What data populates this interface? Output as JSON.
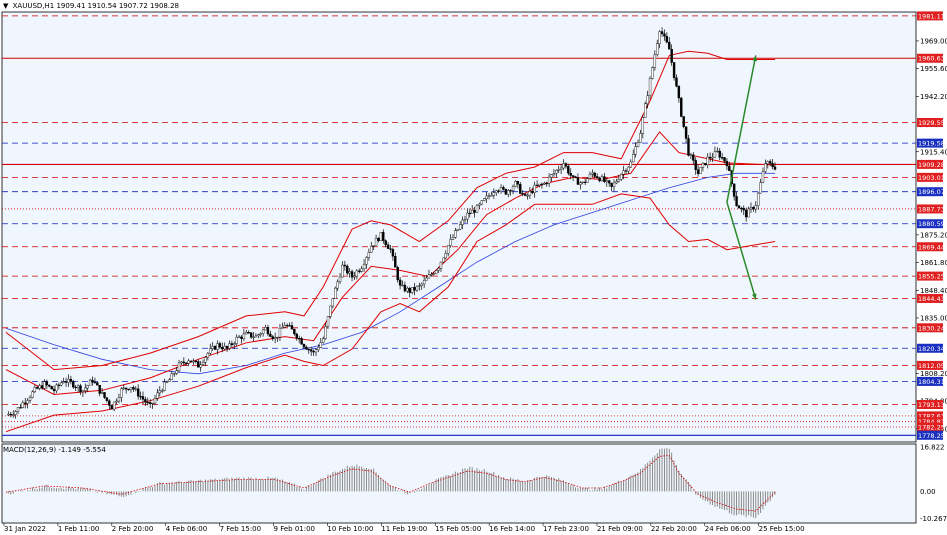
{
  "header": {
    "symbol": "XAUUSD,H1",
    "open": "1909.41",
    "high": "1910.54",
    "low": "1907.72",
    "close": "1908.28"
  },
  "macd": {
    "label": "MACD(12,26,9)",
    "main": "-1.149",
    "signal": "-5.554",
    "y_ticks": [
      "16.822",
      "0.00",
      "-10.267"
    ]
  },
  "colors": {
    "background": "#f0f6fd",
    "grid_border": "#000000",
    "candle": "#000000",
    "bollinger": "#e00000",
    "ma_long": "#3040e0",
    "support_line": "#d00000",
    "blue_level": "#1020c0",
    "arrow_green": "#2a8a2a",
    "red_label_bg": "#e02020",
    "blue_label_bg": "#1a30c0",
    "macd_hist": "#808080",
    "macd_signal": "#d00000"
  },
  "chart_data": {
    "type": "candlestick",
    "symbol": "XAUUSD",
    "timeframe": "H1",
    "ylim": [
      1775,
      1983
    ],
    "price_ticks": [
      "1969.00",
      "1955.60",
      "1942.20",
      "1915.40",
      "1875.20",
      "1861.80",
      "1848.40",
      "1835.00",
      "1808.20",
      "1794.80",
      "1781.40"
    ],
    "x_ticks": [
      "31 Jan 2022",
      "1 Feb 11:00",
      "2 Feb 20:00",
      "4 Feb 06:00",
      "7 Feb 15:00",
      "9 Feb 01:00",
      "10 Feb 10:00",
      "11 Feb 19:00",
      "15 Feb 05:00",
      "16 Feb 14:00",
      "17 Feb 23:00",
      "21 Feb 09:00",
      "22 Feb 20:00",
      "24 Feb 06:00",
      "25 Feb 15:00"
    ],
    "levels": [
      {
        "price": 1981.11,
        "label": "1981.11",
        "style": "dash",
        "color": "red"
      },
      {
        "price": 1960.63,
        "label": "1960.63",
        "style": "solid",
        "color": "red"
      },
      {
        "price": 1929.55,
        "label": "1929.55",
        "style": "dash",
        "color": "red"
      },
      {
        "price": 1919.58,
        "label": "1919.58",
        "style": "dash",
        "color": "blue"
      },
      {
        "price": 1909.28,
        "label": "1909.28",
        "style": "solid",
        "color": "red"
      },
      {
        "price": 1903.01,
        "label": "1903.01",
        "style": "dash",
        "color": "red"
      },
      {
        "price": 1896.07,
        "label": "1896.07",
        "style": "dash",
        "color": "blue"
      },
      {
        "price": 1887.73,
        "label": "1887.73",
        "style": "dot",
        "color": "red"
      },
      {
        "price": 1880.59,
        "label": "1880.59",
        "style": "dash",
        "color": "blue"
      },
      {
        "price": 1869.44,
        "label": "1869.44",
        "style": "dash",
        "color": "red"
      },
      {
        "price": 1855.25,
        "label": "1855.25",
        "style": "dash",
        "color": "red"
      },
      {
        "price": 1844.43,
        "label": "1844.43",
        "style": "dash",
        "color": "red"
      },
      {
        "price": 1830.24,
        "label": "1830.24",
        "style": "dash",
        "color": "red"
      },
      {
        "price": 1820.34,
        "label": "1820.34",
        "style": "dash",
        "color": "blue"
      },
      {
        "price": 1812.05,
        "label": "1812.05",
        "style": "dash",
        "color": "red"
      },
      {
        "price": 1804.31,
        "label": "1804.31",
        "style": "dash",
        "color": "blue"
      },
      {
        "price": 1793.13,
        "label": "1793.13",
        "style": "dash",
        "color": "red"
      },
      {
        "price": 1787.63,
        "label": "1787.63",
        "style": "dot",
        "color": "red"
      },
      {
        "price": 1784.82,
        "label": "1784.82",
        "style": "dot",
        "color": "red"
      },
      {
        "price": 1782.25,
        "label": "1782.25",
        "style": "dot",
        "color": "red"
      },
      {
        "price": 1778.25,
        "label": "1778.25",
        "style": "solid",
        "color": "blue"
      }
    ],
    "close_path": [
      [
        0,
        1788
      ],
      [
        2,
        1790
      ],
      [
        4,
        1795
      ],
      [
        6,
        1800
      ],
      [
        8,
        1803
      ],
      [
        10,
        1800
      ],
      [
        12,
        1805
      ],
      [
        14,
        1803
      ],
      [
        16,
        1800
      ],
      [
        18,
        1805
      ],
      [
        20,
        1798
      ],
      [
        22,
        1792
      ],
      [
        24,
        1800
      ],
      [
        26,
        1802
      ],
      [
        28,
        1797
      ],
      [
        30,
        1792
      ],
      [
        32,
        1800
      ],
      [
        34,
        1805
      ],
      [
        36,
        1812
      ],
      [
        38,
        1815
      ],
      [
        40,
        1812
      ],
      [
        42,
        1818
      ],
      [
        44,
        1822
      ],
      [
        46,
        1820
      ],
      [
        48,
        1825
      ],
      [
        50,
        1827
      ],
      [
        52,
        1826
      ],
      [
        54,
        1830
      ],
      [
        56,
        1825
      ],
      [
        58,
        1832
      ],
      [
        60,
        1828
      ],
      [
        62,
        1822
      ],
      [
        64,
        1818
      ],
      [
        66,
        1825
      ],
      [
        68,
        1845
      ],
      [
        70,
        1860
      ],
      [
        72,
        1855
      ],
      [
        74,
        1860
      ],
      [
        76,
        1870
      ],
      [
        78,
        1875
      ],
      [
        80,
        1868
      ],
      [
        82,
        1850
      ],
      [
        84,
        1848
      ],
      [
        86,
        1850
      ],
      [
        88,
        1855
      ],
      [
        90,
        1860
      ],
      [
        92,
        1870
      ],
      [
        94,
        1878
      ],
      [
        96,
        1885
      ],
      [
        98,
        1888
      ],
      [
        100,
        1893
      ],
      [
        102,
        1898
      ],
      [
        104,
        1896
      ],
      [
        106,
        1900
      ],
      [
        108,
        1893
      ],
      [
        110,
        1898
      ],
      [
        112,
        1900
      ],
      [
        114,
        1905
      ],
      [
        116,
        1910
      ],
      [
        118,
        1902
      ],
      [
        120,
        1900
      ],
      [
        122,
        1905
      ],
      [
        124,
        1902
      ],
      [
        126,
        1898
      ],
      [
        128,
        1905
      ],
      [
        130,
        1910
      ],
      [
        132,
        1925
      ],
      [
        134,
        1950
      ],
      [
        136,
        1975
      ],
      [
        138,
        1965
      ],
      [
        140,
        1940
      ],
      [
        142,
        1915
      ],
      [
        144,
        1905
      ],
      [
        146,
        1912
      ],
      [
        148,
        1915
      ],
      [
        150,
        1910
      ],
      [
        152,
        1890
      ],
      [
        154,
        1885
      ],
      [
        156,
        1890
      ],
      [
        158,
        1910
      ],
      [
        160,
        1908
      ]
    ],
    "bollinger_upper": [
      [
        0,
        1828
      ],
      [
        10,
        1810
      ],
      [
        20,
        1812
      ],
      [
        30,
        1818
      ],
      [
        40,
        1826
      ],
      [
        50,
        1836
      ],
      [
        58,
        1838
      ],
      [
        62,
        1836
      ],
      [
        66,
        1850
      ],
      [
        72,
        1878
      ],
      [
        76,
        1882
      ],
      [
        80,
        1880
      ],
      [
        86,
        1872
      ],
      [
        92,
        1882
      ],
      [
        98,
        1898
      ],
      [
        104,
        1905
      ],
      [
        110,
        1908
      ],
      [
        116,
        1915
      ],
      [
        122,
        1915
      ],
      [
        128,
        1912
      ],
      [
        134,
        1940
      ],
      [
        138,
        1962
      ],
      [
        142,
        1964
      ],
      [
        146,
        1963
      ],
      [
        150,
        1960
      ],
      [
        160,
        1960
      ]
    ],
    "bollinger_middle": [
      [
        0,
        1810
      ],
      [
        10,
        1798
      ],
      [
        20,
        1800
      ],
      [
        30,
        1806
      ],
      [
        40,
        1815
      ],
      [
        50,
        1823
      ],
      [
        58,
        1826
      ],
      [
        64,
        1824
      ],
      [
        70,
        1845
      ],
      [
        76,
        1860
      ],
      [
        82,
        1858
      ],
      [
        88,
        1855
      ],
      [
        94,
        1868
      ],
      [
        100,
        1885
      ],
      [
        106,
        1893
      ],
      [
        112,
        1900
      ],
      [
        118,
        1903
      ],
      [
        124,
        1902
      ],
      [
        130,
        1905
      ],
      [
        136,
        1925
      ],
      [
        140,
        1915
      ],
      [
        146,
        1912
      ],
      [
        150,
        1910
      ],
      [
        160,
        1909
      ]
    ],
    "bollinger_lower": [
      [
        0,
        1780
      ],
      [
        10,
        1788
      ],
      [
        20,
        1790
      ],
      [
        30,
        1795
      ],
      [
        40,
        1802
      ],
      [
        50,
        1811
      ],
      [
        58,
        1817
      ],
      [
        62,
        1814
      ],
      [
        66,
        1812
      ],
      [
        72,
        1820
      ],
      [
        78,
        1838
      ],
      [
        82,
        1842
      ],
      [
        86,
        1838
      ],
      [
        92,
        1850
      ],
      [
        98,
        1872
      ],
      [
        104,
        1880
      ],
      [
        110,
        1890
      ],
      [
        116,
        1890
      ],
      [
        122,
        1890
      ],
      [
        128,
        1895
      ],
      [
        134,
        1893
      ],
      [
        138,
        1880
      ],
      [
        142,
        1872
      ],
      [
        146,
        1873
      ],
      [
        150,
        1868
      ],
      [
        160,
        1872
      ]
    ],
    "ma_long": [
      [
        0,
        1830
      ],
      [
        10,
        1822
      ],
      [
        20,
        1815
      ],
      [
        30,
        1810
      ],
      [
        40,
        1808
      ],
      [
        50,
        1812
      ],
      [
        58,
        1818
      ],
      [
        66,
        1822
      ],
      [
        74,
        1828
      ],
      [
        82,
        1838
      ],
      [
        90,
        1850
      ],
      [
        98,
        1862
      ],
      [
        106,
        1872
      ],
      [
        114,
        1880
      ],
      [
        122,
        1886
      ],
      [
        130,
        1892
      ],
      [
        138,
        1898
      ],
      [
        146,
        1903
      ],
      [
        152,
        1905
      ],
      [
        160,
        1905
      ]
    ],
    "macd_series": [
      [
        0,
        -1
      ],
      [
        8,
        2
      ],
      [
        16,
        1
      ],
      [
        24,
        -2
      ],
      [
        32,
        3
      ],
      [
        40,
        4
      ],
      [
        48,
        5
      ],
      [
        56,
        5
      ],
      [
        62,
        1
      ],
      [
        68,
        7
      ],
      [
        72,
        10
      ],
      [
        76,
        9
      ],
      [
        80,
        2
      ],
      [
        84,
        -1
      ],
      [
        88,
        3
      ],
      [
        92,
        6
      ],
      [
        96,
        9
      ],
      [
        100,
        8
      ],
      [
        104,
        5
      ],
      [
        108,
        4
      ],
      [
        112,
        6
      ],
      [
        116,
        4
      ],
      [
        120,
        1
      ],
      [
        124,
        1
      ],
      [
        128,
        4
      ],
      [
        132,
        8
      ],
      [
        136,
        16
      ],
      [
        138,
        16.5
      ],
      [
        140,
        8
      ],
      [
        144,
        -2
      ],
      [
        148,
        -6
      ],
      [
        152,
        -9
      ],
      [
        156,
        -10
      ],
      [
        160,
        -1
      ]
    ],
    "macd_ylim": [
      -12,
      18
    ],
    "arrows": [
      {
        "from": [
          150,
          1891
        ],
        "to": [
          156,
          1962
        ],
        "color": "green"
      },
      {
        "from": [
          150,
          1891
        ],
        "to": [
          156,
          1844
        ],
        "color": "green"
      }
    ]
  }
}
